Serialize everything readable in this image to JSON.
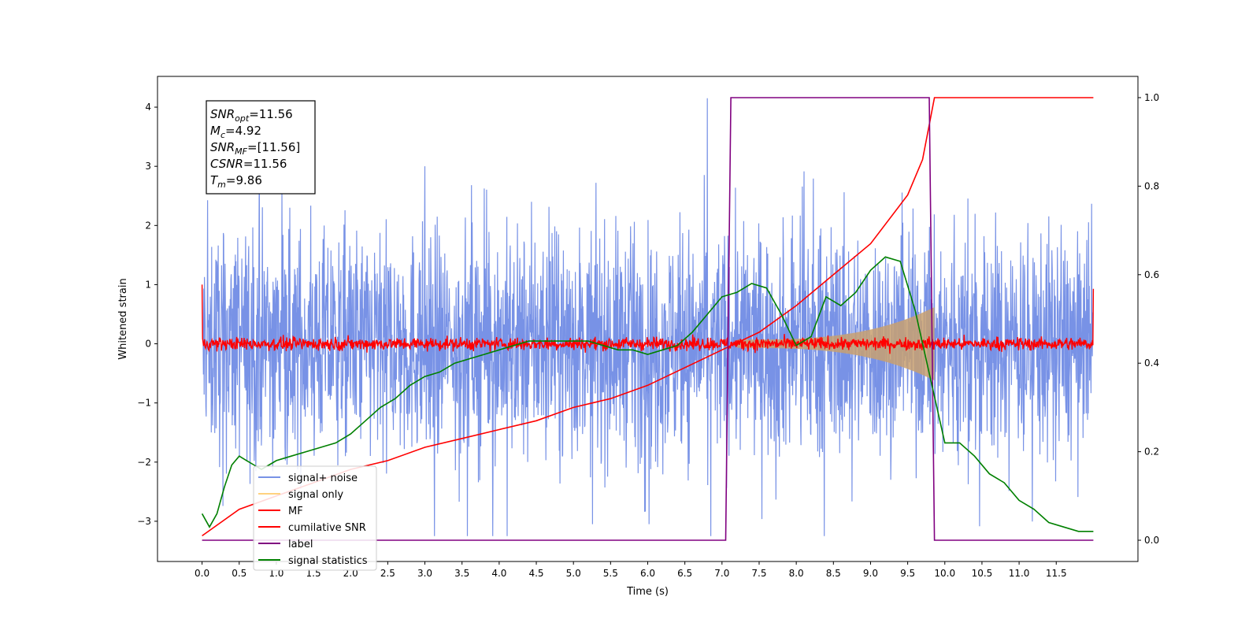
{
  "chart_data": {
    "type": "line",
    "title": "",
    "xlabel": "Time (s)",
    "ylabel": "Whitened strain",
    "xlim": [
      -0.6,
      12.6
    ],
    "ylim": [
      -3.68,
      4.52
    ],
    "y2lim": [
      -0.048,
      1.048
    ],
    "xticks": [
      "0.0",
      "0.5",
      "1.0",
      "1.5",
      "2.0",
      "2.5",
      "3.0",
      "3.5",
      "4.0",
      "4.5",
      "5.0",
      "5.5",
      "6.0",
      "6.5",
      "7.0",
      "7.5",
      "8.0",
      "8.5",
      "9.0",
      "9.5",
      "10.0",
      "10.5",
      "11.0",
      "11.5"
    ],
    "yticks": [
      "−3",
      "−2",
      "−1",
      "0",
      "1",
      "2",
      "3",
      "4"
    ],
    "y2ticks": [
      "0.0",
      "0.2",
      "0.4",
      "0.6",
      "0.8",
      "1.0"
    ],
    "grid": false,
    "legend_position": "lower-left",
    "annotation": {
      "lines": [
        {
          "sym": "SNR",
          "sub": "opt",
          "value": "=11.56"
        },
        {
          "sym": "M",
          "sub": "c",
          "value": "=4.92"
        },
        {
          "sym": "SNR",
          "sub": "MF",
          "value": "=[11.56]"
        },
        {
          "sym": "CSNR",
          "sub": "",
          "value": "=11.56"
        },
        {
          "sym": "T",
          "sub": "m",
          "value": "=9.86"
        }
      ]
    },
    "series": [
      {
        "name": "signal+ noise",
        "color": "#7892e6",
        "axis": "left",
        "kind": "noise",
        "x_range": [
          0,
          12
        ],
        "amplitude_typical": 1.0,
        "amplitude_peak": 4.17
      },
      {
        "name": "signal only",
        "color": "#ffd27f",
        "axis": "left",
        "kind": "chirp_envelope",
        "x_start": 7.2,
        "x_end": 9.86,
        "amplitude_start": 0.07,
        "amplitude_end": 0.62
      },
      {
        "name": "MF",
        "color": "#ff0000",
        "axis": "left",
        "kind": "noise",
        "x_range": [
          0,
          12
        ],
        "amplitude_typical": 0.1,
        "start_value": 1.0,
        "end_value": 0.93
      },
      {
        "name": "cumilative SNR",
        "color": "#ff0000",
        "axis": "right",
        "x": [
          0,
          0.5,
          1.0,
          1.5,
          2.0,
          2.5,
          3.0,
          3.5,
          4.0,
          4.5,
          5.0,
          5.5,
          6.0,
          6.5,
          7.0,
          7.5,
          8.0,
          8.5,
          9.0,
          9.5,
          9.7,
          9.86,
          10.0,
          12.0
        ],
        "y": [
          0.01,
          0.07,
          0.1,
          0.13,
          0.16,
          0.18,
          0.21,
          0.23,
          0.25,
          0.27,
          0.3,
          0.32,
          0.35,
          0.39,
          0.43,
          0.47,
          0.53,
          0.6,
          0.67,
          0.78,
          0.86,
          1.0,
          1.0,
          1.0
        ]
      },
      {
        "name": "label",
        "color": "#800080",
        "axis": "right",
        "x": [
          0,
          7.05,
          7.12,
          9.79,
          9.86,
          12.0
        ],
        "y": [
          0,
          0,
          1,
          1,
          0,
          0
        ]
      },
      {
        "name": "signal statistics",
        "color": "#008000",
        "axis": "right",
        "x": [
          0,
          0.1,
          0.2,
          0.3,
          0.4,
          0.5,
          0.6,
          0.7,
          0.8,
          0.9,
          1.0,
          1.2,
          1.4,
          1.6,
          1.8,
          2.0,
          2.2,
          2.4,
          2.6,
          2.8,
          3.0,
          3.2,
          3.4,
          3.6,
          3.8,
          4.0,
          4.2,
          4.4,
          4.6,
          4.8,
          5.0,
          5.2,
          5.4,
          5.6,
          5.8,
          6.0,
          6.2,
          6.4,
          6.6,
          6.8,
          7.0,
          7.2,
          7.4,
          7.6,
          7.8,
          8.0,
          8.2,
          8.4,
          8.6,
          8.8,
          9.0,
          9.2,
          9.4,
          9.6,
          9.8,
          10.0,
          10.2,
          10.4,
          10.6,
          10.8,
          11.0,
          11.2,
          11.4,
          11.6,
          11.8,
          12.0
        ],
        "y": [
          0.06,
          0.03,
          0.06,
          0.12,
          0.17,
          0.19,
          0.18,
          0.17,
          0.16,
          0.17,
          0.18,
          0.19,
          0.2,
          0.21,
          0.22,
          0.24,
          0.27,
          0.3,
          0.32,
          0.35,
          0.37,
          0.38,
          0.4,
          0.41,
          0.42,
          0.43,
          0.44,
          0.45,
          0.45,
          0.45,
          0.45,
          0.45,
          0.44,
          0.43,
          0.43,
          0.42,
          0.43,
          0.44,
          0.47,
          0.51,
          0.55,
          0.56,
          0.58,
          0.57,
          0.51,
          0.44,
          0.46,
          0.55,
          0.53,
          0.56,
          0.61,
          0.64,
          0.63,
          0.52,
          0.37,
          0.22,
          0.22,
          0.19,
          0.15,
          0.13,
          0.09,
          0.07,
          0.04,
          0.03,
          0.02,
          0.02
        ]
      }
    ]
  }
}
